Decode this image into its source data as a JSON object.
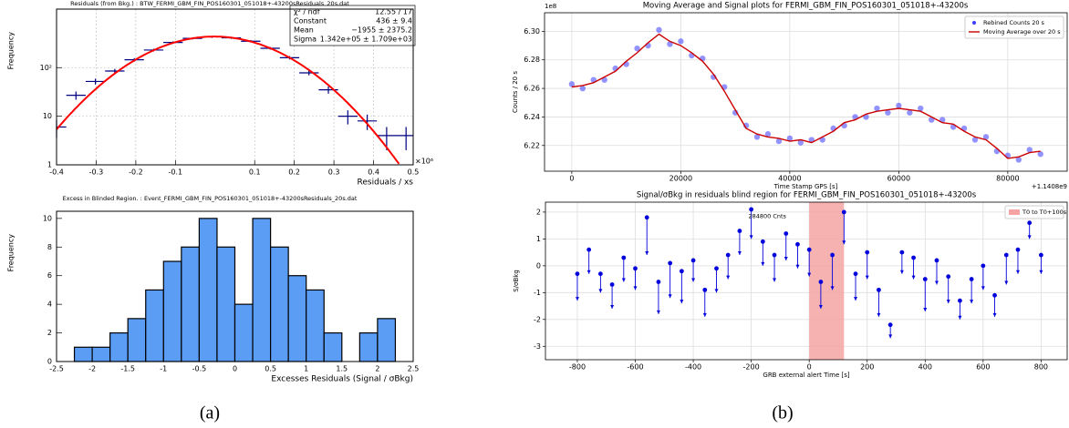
{
  "chart_data": [
    {
      "type": "errorbar",
      "title": "Residuals (from Bkg.) : BTW_FERMI_GBM_FIN_POS160301_051018+-43200sResiduals_20s.dat",
      "ylabel": "Frequency",
      "xlabel": "Residuals / xs",
      "x_multiplier": "×10⁶",
      "log_y": true,
      "grid": true,
      "color": "#000080",
      "xlim": [
        -0.4,
        0.5
      ],
      "xticks": [
        -0.4,
        -0.3,
        -0.2,
        -0.1,
        0.1,
        0.2,
        0.3,
        0.4,
        0.5
      ],
      "ylim": [
        1,
        1600
      ],
      "yticks": [
        1,
        10,
        {
          "value": 100,
          "label": "10²"
        }
      ],
      "x": [
        -0.4,
        -0.351,
        -0.302,
        -0.253,
        -0.204,
        -0.155,
        -0.106,
        -0.057,
        -0.008,
        0.041,
        0.09,
        0.139,
        0.188,
        0.237,
        0.286,
        0.335,
        0.384,
        0.433,
        0.482
      ],
      "values": [
        6,
        27,
        52,
        85,
        145,
        230,
        330,
        400,
        430,
        410,
        350,
        250,
        160,
        78,
        35,
        10,
        8,
        4,
        4
      ],
      "errors": [
        2.4,
        5.2,
        7.2,
        9.2,
        12,
        15,
        18,
        20,
        21,
        20,
        19,
        16,
        13,
        8.8,
        5.9,
        3.2,
        2.8,
        2,
        2
      ],
      "fit": {
        "constant": 436,
        "mean": -0.001955,
        "sigma": 0.1342,
        "color": "#ff0000"
      },
      "stats": [
        {
          "label": "χ² / ndf",
          "value": "12.55 / 17"
        },
        {
          "label": "Constant",
          "value": "436 ± 9.4"
        },
        {
          "label": "Mean",
          "value": "−1955 ± 2375.2"
        },
        {
          "label": "Sigma",
          "value": "1.342e+05 ± 1.709e+03"
        }
      ]
    },
    {
      "type": "histogram",
      "title": "Excess in Blinded Region. : Event_FERMI_GBM_FIN_POS160301_051018+-43200sResiduals_20s.dat",
      "ylabel": "Frequency",
      "xlabel": "Excesses Residuals (Signal / σBkg)",
      "color": "#5b9cf5",
      "xlim": [
        -2.5,
        2.5
      ],
      "xticks": [
        -2.5,
        -2,
        -1.5,
        -1,
        -0.5,
        0,
        0.5,
        1,
        1.5,
        2,
        2.5
      ],
      "ylim": [
        0,
        10.5
      ],
      "yticks": [
        0,
        2,
        4,
        6,
        8,
        10
      ],
      "bins": [
        -2.25,
        -2,
        -1.75,
        -1.5,
        -1.25,
        -1,
        -0.75,
        -0.5,
        -0.25,
        0,
        0.25,
        0.5,
        0.75,
        1,
        1.25,
        1.5,
        1.75,
        2,
        2.25
      ],
      "values": [
        1,
        1,
        2,
        3,
        5,
        7,
        8,
        10,
        8,
        4,
        10,
        8,
        6,
        5,
        2,
        0,
        2,
        3
      ]
    },
    {
      "type": "line",
      "title": "Moving Average and Signal plots for FERMI_GBM_FIN_POS160301_051018+-43200s",
      "ylabel": "Counts / 20 s",
      "xlabel": "Time Stamp GPS [s]",
      "y_offset_label": "1e8",
      "x_offset_label": "+1.1408e9",
      "grid": true,
      "legend": "upper right",
      "xlim": [
        -5000,
        90900
      ],
      "xticks": [
        0,
        20000,
        40000,
        60000,
        80000
      ],
      "ylim": [
        6.202,
        6.313
      ],
      "yticks": [
        6.22,
        6.24,
        6.26,
        6.28,
        {
          "value": 6.3,
          "label": "6.30"
        }
      ],
      "x": [
        0,
        2000,
        4000,
        6000,
        8000,
        10000,
        12000,
        14000,
        16000,
        18000,
        20000,
        22000,
        24000,
        26000,
        28000,
        30000,
        32000,
        34000,
        36000,
        38000,
        40000,
        42000,
        44000,
        46000,
        48000,
        50000,
        52000,
        54000,
        56000,
        58000,
        60000,
        62000,
        64000,
        66000,
        68000,
        70000,
        72000,
        74000,
        76000,
        78000,
        80000,
        82000,
        84000,
        86000
      ],
      "series": [
        {
          "name": "Rebined Counts 20 s",
          "color": "#3a3aff",
          "style": "scatter",
          "values": [
            6.263,
            6.26,
            6.266,
            6.266,
            6.274,
            6.277,
            6.288,
            6.29,
            6.301,
            6.291,
            6.293,
            6.283,
            6.281,
            6.268,
            6.261,
            6.243,
            6.234,
            6.226,
            6.228,
            6.223,
            6.225,
            6.222,
            6.224,
            6.224,
            6.232,
            6.234,
            6.24,
            6.24,
            6.246,
            6.243,
            6.248,
            6.243,
            6.246,
            6.238,
            6.238,
            6.233,
            6.232,
            6.224,
            6.226,
            6.216,
            6.213,
            6.21,
            6.217,
            6.214
          ]
        },
        {
          "name": "Moving Average over 20 s",
          "color": "#cc0000",
          "style": "line",
          "values": [
            6.261,
            6.262,
            6.264,
            6.268,
            6.272,
            6.279,
            6.285,
            6.292,
            6.298,
            6.293,
            6.29,
            6.285,
            6.279,
            6.27,
            6.258,
            6.245,
            6.232,
            6.228,
            6.226,
            6.225,
            6.223,
            6.224,
            6.222,
            6.226,
            6.23,
            6.236,
            6.238,
            6.242,
            6.244,
            6.245,
            6.246,
            6.245,
            6.244,
            6.24,
            6.236,
            6.235,
            6.23,
            6.226,
            6.224,
            6.218,
            6.211,
            6.212,
            6.215,
            6.216
          ]
        }
      ]
    },
    {
      "type": "stem",
      "title": "Signal/σBkg in residuals blind region for FERMI_GBM_FIN_POS160301_051018+-43200s",
      "ylabel": "S/σBkg",
      "xlabel": "GRB external alert Time [s]",
      "grid": true,
      "legend": "upper right",
      "color": "#0000dd",
      "xlim": [
        -910,
        890
      ],
      "xticks": [
        -800,
        -600,
        -400,
        -200,
        0,
        200,
        400,
        600,
        800
      ],
      "ylim": [
        -3.5,
        2.37
      ],
      "yticks": [
        -3,
        -2,
        -1,
        0,
        1,
        2
      ],
      "region": {
        "name": "T0 to T0+100s",
        "x": [
          0,
          120
        ],
        "color": "#f5a3a3"
      },
      "annotation": {
        "text": "284800 Cnts",
        "x": -210,
        "y": 1.85
      },
      "x": [
        -800,
        -760,
        -720,
        -680,
        -640,
        -600,
        -560,
        -520,
        -480,
        -440,
        -400,
        -360,
        -320,
        -280,
        -240,
        -200,
        -160,
        -120,
        -80,
        -40,
        0,
        40,
        80,
        120,
        160,
        200,
        240,
        280,
        320,
        360,
        400,
        440,
        480,
        520,
        560,
        600,
        640,
        680,
        720,
        760,
        800
      ],
      "values": [
        -0.3,
        0.6,
        -0.3,
        -0.7,
        0.3,
        -0.1,
        1.8,
        -0.6,
        0.1,
        -0.2,
        0.2,
        -0.9,
        -0.1,
        0.4,
        1.3,
        2.1,
        0.9,
        0.4,
        1.2,
        0.8,
        0.6,
        -0.6,
        0.4,
        2.0,
        -0.3,
        0.5,
        -0.9,
        -2.2,
        0.5,
        0.3,
        -0.5,
        0.2,
        -0.4,
        -1.3,
        -0.5,
        0.0,
        -1.1,
        0.4,
        0.6,
        1.6,
        0.4
      ],
      "arrow_ends": [
        -1.3,
        -0.3,
        -1.0,
        -1.6,
        -0.6,
        -0.9,
        0.4,
        -1.8,
        -1.2,
        -1.4,
        -0.6,
        -1.9,
        -1.0,
        -0.5,
        0.4,
        1.0,
        0,
        -0.6,
        0.2,
        -0.1,
        -0.4,
        -1.6,
        -0.9,
        0.8,
        -1.3,
        -0.5,
        -1.9,
        -2.7,
        -0.3,
        -0.5,
        -1.7,
        -0.7,
        -1.4,
        -2.0,
        -1.4,
        -0.9,
        -1.9,
        -0.7,
        -0.3,
        1.0,
        -0.3
      ]
    }
  ],
  "figure_labels": [
    "(a)",
    "(b)"
  ]
}
